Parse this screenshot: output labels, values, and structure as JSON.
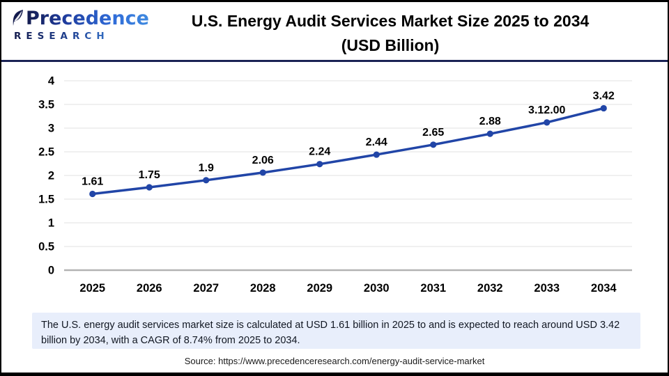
{
  "brand": {
    "name": "Precedence",
    "subname": "RESEARCH",
    "leaf_color_dark": "#141b4d",
    "leaf_color_light": "#3f8ae0"
  },
  "header": {
    "title_line1": "U.S. Energy Audit Services Market Size 2025 to 2034",
    "title_line2": "(USD Billion)"
  },
  "chart_data": {
    "type": "line",
    "categories": [
      "2025",
      "2026",
      "2027",
      "2028",
      "2029",
      "2030",
      "2031",
      "2032",
      "2033",
      "2034"
    ],
    "values": [
      1.61,
      1.75,
      1.9,
      2.06,
      2.24,
      2.44,
      2.65,
      2.88,
      3.12,
      3.42
    ],
    "point_labels": [
      "1.61",
      "1.75",
      "1.9",
      "2.06",
      "2.24",
      "2.44",
      "2.65",
      "2.88",
      "3.12.00",
      "3.42"
    ],
    "title": "U.S. Energy Audit Services Market Size 2025 to 2034 (USD Billion)",
    "xlabel": "",
    "ylabel": "",
    "ylim": [
      0,
      4
    ],
    "ytick_step": 0.5,
    "grid": true,
    "legend": "none",
    "line_color": "#2145a7",
    "marker_color": "#2145a7",
    "grid_color": "#e7e7e7",
    "zero_axis_color": "#b3b3b3",
    "label_color": "#000000"
  },
  "footer": {
    "description": "The U.S. energy audit services market size is calculated at USD 1.61 billion in 2025 to and is expected to reach around USD 3.42 billion by 2034, with a CAGR of 8.74% from 2025 to 2034.",
    "source": "Source: https://www.precedenceresearch.com/energy-audit-service-market"
  }
}
